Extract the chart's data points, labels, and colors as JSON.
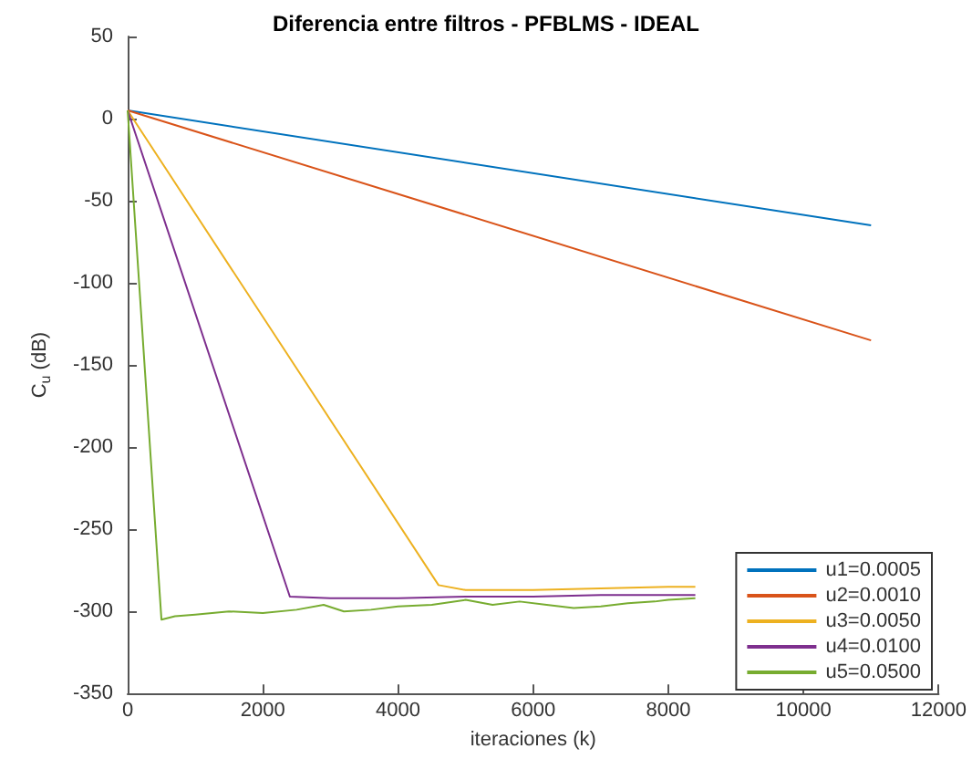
{
  "chart_data": {
    "type": "line",
    "title": "Diferencia entre filtros - PFBLMS - IDEAL",
    "xlabel": "iteraciones (k)",
    "ylabel": "C$_{u}$ (dB)",
    "xlim": [
      0,
      12000
    ],
    "xticks": [
      0,
      2000,
      4000,
      6000,
      8000,
      10000,
      12000
    ],
    "ylim": [
      -350,
      50
    ],
    "yticks": [
      -350,
      -300,
      -250,
      -200,
      -150,
      -100,
      -50,
      0,
      50
    ],
    "grid": false,
    "legend": "bottom right",
    "marker": "none",
    "line_style": "solid",
    "series": [
      {
        "name": "u1=0.0005",
        "color": "#0072bd",
        "x": [
          0,
          11000
        ],
        "values": [
          5,
          -65
        ]
      },
      {
        "name": "u2=0.0010",
        "color": "#d95319",
        "x": [
          0,
          11000
        ],
        "values": [
          5,
          -135
        ]
      },
      {
        "name": "u3=0.0050",
        "color": "#edb120",
        "x": [
          0,
          4600,
          5000,
          6000,
          7000,
          8000,
          8400
        ],
        "values": [
          5,
          -284,
          -287,
          -287,
          -286,
          -285,
          -285
        ]
      },
      {
        "name": "u4=0.0100",
        "color": "#7e2f8e",
        "x": [
          0,
          2400,
          3000,
          4000,
          5000,
          6000,
          7000,
          8000,
          8400
        ],
        "values": [
          5,
          -291,
          -292,
          -292,
          -291,
          -291,
          -290,
          -290,
          -290
        ]
      },
      {
        "name": "u5=0.0500",
        "color": "#77ac30",
        "x": [
          0,
          500,
          700,
          1000,
          1500,
          2000,
          2500,
          2900,
          3200,
          3600,
          4000,
          4500,
          5000,
          5400,
          5800,
          6200,
          6600,
          7000,
          7400,
          7800,
          8000,
          8400
        ],
        "values": [
          5,
          -305,
          -303,
          -302,
          -300,
          -301,
          -299,
          -296,
          -300,
          -299,
          -297,
          -296,
          -293,
          -296,
          -294,
          -296,
          -298,
          -297,
          -295,
          -294,
          -293,
          -292
        ]
      }
    ]
  }
}
